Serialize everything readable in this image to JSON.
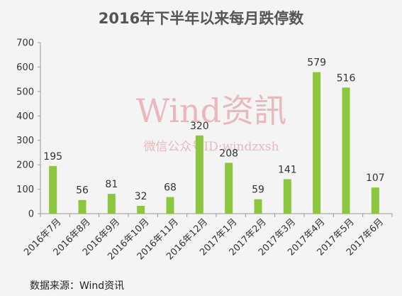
{
  "colors": {
    "bar": "#8cc63f",
    "axis": "#999999",
    "text": "#333333",
    "watermark": "#e8b8bc"
  },
  "source": "数据来源：Wind资讯",
  "watermark": {
    "line1": "Wind资訊",
    "line2": "微信公众号ID:windzxsh"
  },
  "chart_data": {
    "type": "bar",
    "title": "2016年下半年以来每月跌停数",
    "xlabel": "",
    "ylabel": "",
    "ylim": [
      0,
      700
    ],
    "yticks": [
      0,
      100,
      200,
      300,
      400,
      500,
      600,
      700
    ],
    "grid": false,
    "categories": [
      "2016年7月",
      "2016年8月",
      "2016年9月",
      "2016年10月",
      "2016年11月",
      "2016年12月",
      "2017年1月",
      "2017年2月",
      "2017年3月",
      "2017年4月",
      "2017年5月",
      "2017年6月"
    ],
    "values": [
      195,
      56,
      81,
      32,
      68,
      320,
      208,
      59,
      141,
      579,
      516,
      107
    ]
  }
}
